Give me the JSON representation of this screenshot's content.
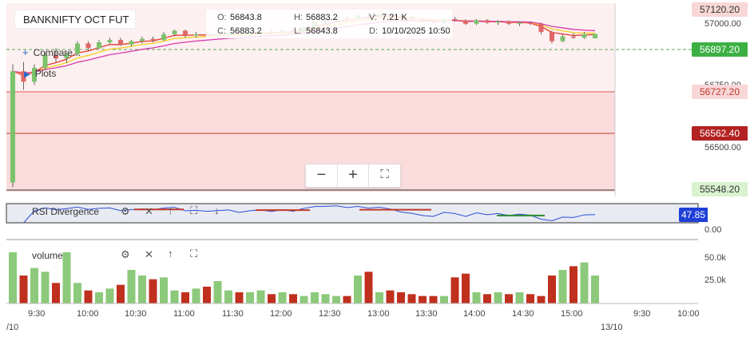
{
  "symbol": "BANKNIFTY OCT FUT",
  "ohlc": {
    "o_label": "O:",
    "o_value": "56843.8",
    "h_label": "H:",
    "h_value": "56883.2",
    "v_label": "V:",
    "v_value": "7.21 K",
    "c_label": "C:",
    "c_value": "56883.2",
    "l_label": "L:",
    "l_value": "56843.8",
    "d_label": "D:",
    "d_value": "10/10/2025 10:50"
  },
  "menu": {
    "compare": "Compare...",
    "plots": "Plots"
  },
  "zoom": {
    "minus": "−",
    "plus": "+",
    "fullscreen": "⛶"
  },
  "price_axis": {
    "ticks": [
      "57000.00",
      "56750.00",
      "56500.00"
    ],
    "labels": [
      {
        "text": "57120.20",
        "bg": "#f8d7d7",
        "fg": "#333"
      },
      {
        "text": "56897.20",
        "bg": "#3cb043",
        "fg": "#ffffff"
      },
      {
        "text": "56727.20",
        "bg": "#f8d7d7",
        "fg": "#c0392b"
      },
      {
        "text": "56562.40",
        "bg": "#b22222",
        "fg": "#ffffff"
      },
      {
        "text": "55548.20",
        "bg": "#d9f2d0",
        "fg": "#333"
      }
    ]
  },
  "rsi": {
    "title": "RSI Divergence",
    "value": "47.85",
    "value_bg": "#1f3fd6",
    "tick": "0.00"
  },
  "volume": {
    "title": "volume",
    "ticks": [
      "50.0k",
      "25.0k"
    ]
  },
  "time_axis": {
    "labels": [
      "9:30",
      "10:00",
      "10:30",
      "11:00",
      "11:30",
      "12:00",
      "12:30",
      "13:00",
      "13:30",
      "14:00",
      "14:30",
      "15:00",
      "9:30",
      "10:00"
    ],
    "left_date": "/10",
    "right_date": "13/10"
  },
  "colors": {
    "up": "#7cc36b",
    "down": "#e06666",
    "vol_up": "#8cc97a",
    "vol_down": "#c0301e",
    "fast_ma": "#e53935",
    "mid_ma": "#f5d020",
    "slow_ma": "#d63ab0"
  },
  "chart_data": {
    "type": "candlestick",
    "price_ylim": [
      55548.2,
      57120.2
    ],
    "candles": [
      {
        "o": 55600,
        "h": 56620,
        "l": 55560,
        "c": 56560
      },
      {
        "o": 56560,
        "h": 56640,
        "l": 56400,
        "c": 56470
      },
      {
        "o": 56470,
        "h": 56620,
        "l": 56440,
        "c": 56590
      },
      {
        "o": 56590,
        "h": 56720,
        "l": 56570,
        "c": 56700
      },
      {
        "o": 56700,
        "h": 56760,
        "l": 56640,
        "c": 56670
      },
      {
        "o": 56670,
        "h": 56720,
        "l": 56630,
        "c": 56710
      },
      {
        "o": 56710,
        "h": 56820,
        "l": 56700,
        "c": 56800
      },
      {
        "o": 56800,
        "h": 56820,
        "l": 56740,
        "c": 56760
      },
      {
        "o": 56760,
        "h": 56830,
        "l": 56750,
        "c": 56810
      },
      {
        "o": 56810,
        "h": 56850,
        "l": 56790,
        "c": 56830
      },
      {
        "o": 56830,
        "h": 56850,
        "l": 56780,
        "c": 56790
      },
      {
        "o": 56790,
        "h": 56830,
        "l": 56770,
        "c": 56820
      },
      {
        "o": 56820,
        "h": 56860,
        "l": 56800,
        "c": 56840
      },
      {
        "o": 56840,
        "h": 56860,
        "l": 56810,
        "c": 56830
      },
      {
        "o": 56830,
        "h": 56900,
        "l": 56820,
        "c": 56880
      },
      {
        "o": 56880,
        "h": 56920,
        "l": 56860,
        "c": 56910
      },
      {
        "o": 56910,
        "h": 56920,
        "l": 56850,
        "c": 56870
      },
      {
        "o": 56870,
        "h": 56900,
        "l": 56850,
        "c": 56880
      },
      {
        "o": 56880,
        "h": 56900,
        "l": 56860,
        "c": 56870
      },
      {
        "o": 56870,
        "h": 56890,
        "l": 56850,
        "c": 56880
      },
      {
        "o": 56880,
        "h": 56900,
        "l": 56860,
        "c": 56890
      },
      {
        "o": 56890,
        "h": 56900,
        "l": 56860,
        "c": 56870
      },
      {
        "o": 56870,
        "h": 56900,
        "l": 56860,
        "c": 56890
      },
      {
        "o": 56890,
        "h": 56910,
        "l": 56870,
        "c": 56900
      },
      {
        "o": 56900,
        "h": 56920,
        "l": 56880,
        "c": 56890
      },
      {
        "o": 56890,
        "h": 56920,
        "l": 56880,
        "c": 56910
      },
      {
        "o": 56910,
        "h": 56930,
        "l": 56890,
        "c": 56900
      },
      {
        "o": 56900,
        "h": 56950,
        "l": 56890,
        "c": 56940
      },
      {
        "o": 56940,
        "h": 57000,
        "l": 56930,
        "c": 56990
      },
      {
        "o": 56990,
        "h": 57020,
        "l": 56970,
        "c": 57000
      },
      {
        "o": 57000,
        "h": 57030,
        "l": 56980,
        "c": 57020
      },
      {
        "o": 57020,
        "h": 57040,
        "l": 57000,
        "c": 57010
      },
      {
        "o": 57010,
        "h": 57050,
        "l": 57000,
        "c": 57040
      },
      {
        "o": 57040,
        "h": 57060,
        "l": 57020,
        "c": 57030
      },
      {
        "o": 57030,
        "h": 57060,
        "l": 57020,
        "c": 57050
      },
      {
        "o": 57050,
        "h": 57070,
        "l": 57030,
        "c": 57040
      },
      {
        "o": 57040,
        "h": 57060,
        "l": 57010,
        "c": 57020
      },
      {
        "o": 57020,
        "h": 57040,
        "l": 57000,
        "c": 57010
      },
      {
        "o": 57010,
        "h": 57030,
        "l": 56980,
        "c": 56990
      },
      {
        "o": 56990,
        "h": 57010,
        "l": 56970,
        "c": 56980
      },
      {
        "o": 56980,
        "h": 57020,
        "l": 56970,
        "c": 57010
      },
      {
        "o": 57010,
        "h": 57030,
        "l": 56990,
        "c": 57000
      },
      {
        "o": 57000,
        "h": 57010,
        "l": 56960,
        "c": 56970
      },
      {
        "o": 56970,
        "h": 57010,
        "l": 56960,
        "c": 57000
      },
      {
        "o": 57000,
        "h": 57010,
        "l": 56970,
        "c": 56980
      },
      {
        "o": 56980,
        "h": 57000,
        "l": 56960,
        "c": 56990
      },
      {
        "o": 56990,
        "h": 57000,
        "l": 56960,
        "c": 56970
      },
      {
        "o": 56970,
        "h": 56990,
        "l": 56950,
        "c": 56980
      },
      {
        "o": 56980,
        "h": 56990,
        "l": 56960,
        "c": 56970
      },
      {
        "o": 56970,
        "h": 56980,
        "l": 56880,
        "c": 56900
      },
      {
        "o": 56900,
        "h": 56910,
        "l": 56800,
        "c": 56820
      },
      {
        "o": 56820,
        "h": 56880,
        "l": 56810,
        "c": 56860
      },
      {
        "o": 56860,
        "h": 56890,
        "l": 56840,
        "c": 56850
      },
      {
        "o": 56850,
        "h": 56900,
        "l": 56840,
        "c": 56880
      },
      {
        "o": 56843.8,
        "h": 56883.2,
        "l": 56843.8,
        "c": 56883.2
      }
    ],
    "volume": [
      55,
      30,
      38,
      34,
      22,
      55,
      22,
      14,
      12,
      16,
      20,
      36,
      30,
      26,
      28,
      14,
      12,
      16,
      18,
      24,
      14,
      12,
      12,
      14,
      10,
      12,
      10,
      8,
      12,
      10,
      8,
      8,
      30,
      34,
      12,
      14,
      12,
      10,
      8,
      8,
      8,
      28,
      32,
      12,
      10,
      12,
      10,
      12,
      10,
      8,
      30,
      36,
      40,
      44,
      30
    ]
  }
}
